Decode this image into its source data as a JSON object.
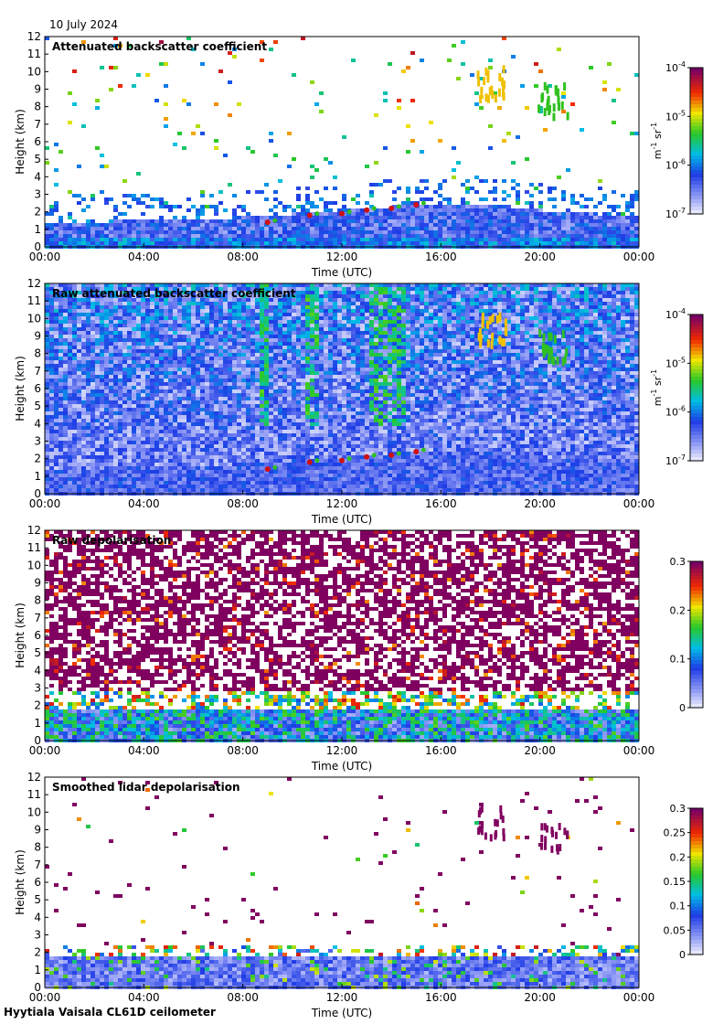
{
  "date": "10 July 2024",
  "footer": "Hyytiala Vaisala CL61D ceilometer",
  "colors": {
    "cloud_red": "#d01010",
    "cirrus_yellow": "#f0c000",
    "cirrus_green": "#30c020",
    "noise_purple": "#800060",
    "boundary_blue": "#4060e0"
  },
  "chart_data": [
    {
      "type": "heatmap",
      "title": "Attenuated backscatter coefficient",
      "xlabel": "Time (UTC)",
      "ylabel": "Height (km)",
      "xticks": [
        "00:00",
        "04:00",
        "08:00",
        "12:00",
        "16:00",
        "20:00",
        "00:00"
      ],
      "yticks": [
        "0",
        "1",
        "2",
        "3",
        "4",
        "5",
        "6",
        "7",
        "8",
        "9",
        "10",
        "11",
        "12"
      ],
      "xlim": [
        0,
        24
      ],
      "ylim": [
        0,
        12
      ],
      "colorbar": {
        "scale": "log",
        "range": [
          1e-07,
          0.0001
        ],
        "ticks": [
          {
            "base": "10",
            "exp": "-7"
          },
          {
            "base": "10",
            "exp": "-6"
          },
          {
            "base": "10",
            "exp": "-5"
          },
          {
            "base": "10",
            "exp": "-4"
          }
        ],
        "label_main": "m",
        "label_sup1": "-1",
        "label_mid": " sr",
        "label_sup2": "-1",
        "colormap": "rainbow-white"
      },
      "features": {
        "boundary_layer_top_km": [
          1.5,
          1.6,
          1.8,
          2.0,
          2.2,
          2.4,
          2.6,
          2.5,
          2.2,
          2.0,
          1.8
        ],
        "boundary_layer_times_h": [
          0,
          4,
          8,
          10,
          12,
          14,
          16,
          18,
          20,
          22,
          24
        ],
        "cloud_points": [
          [
            9.0,
            1.4
          ],
          [
            10.7,
            1.8
          ],
          [
            12.0,
            1.9
          ],
          [
            13.0,
            2.1
          ],
          [
            14.0,
            2.2
          ],
          [
            15.0,
            2.4
          ]
        ],
        "cirrus": [
          {
            "time_h": 18.0,
            "height_km": 9.5
          },
          {
            "time_h": 20.5,
            "height_km": 8.5
          }
        ]
      }
    },
    {
      "type": "heatmap",
      "title": "Raw attenuated backscatter coefficient",
      "xlabel": "Time (UTC)",
      "ylabel": "Height (km)",
      "xticks": [
        "00:00",
        "04:00",
        "08:00",
        "12:00",
        "16:00",
        "20:00",
        "00:00"
      ],
      "yticks": [
        "0",
        "1",
        "2",
        "3",
        "4",
        "5",
        "6",
        "7",
        "8",
        "9",
        "10",
        "11",
        "12"
      ],
      "xlim": [
        0,
        24
      ],
      "ylim": [
        0,
        12
      ],
      "colorbar": {
        "scale": "log",
        "range": [
          1e-07,
          0.0001
        ],
        "ticks": [
          {
            "base": "10",
            "exp": "-7"
          },
          {
            "base": "10",
            "exp": "-6"
          },
          {
            "base": "10",
            "exp": "-5"
          },
          {
            "base": "10",
            "exp": "-4"
          }
        ],
        "label_main": "m",
        "label_sup1": "-1",
        "label_mid": " sr",
        "label_sup2": "-1",
        "colormap": "rainbow-white"
      }
    },
    {
      "type": "heatmap",
      "title": "Raw depolarisation",
      "xlabel": "Time (UTC)",
      "ylabel": "Height (km)",
      "xticks": [
        "00:00",
        "04:00",
        "08:00",
        "12:00",
        "16:00",
        "20:00",
        "00:00"
      ],
      "yticks": [
        "0",
        "1",
        "2",
        "3",
        "4",
        "5",
        "6",
        "7",
        "8",
        "9",
        "10",
        "11",
        "12"
      ],
      "xlim": [
        0,
        24
      ],
      "ylim": [
        0,
        12
      ],
      "colorbar": {
        "scale": "linear",
        "range": [
          0,
          0.3
        ],
        "ticks": [
          "0",
          "0.1",
          "0.2",
          "0.3"
        ],
        "colormap": "rainbow-white"
      }
    },
    {
      "type": "heatmap",
      "title": "Smoothed lidar depolarisation",
      "xlabel": "Time (UTC)",
      "ylabel": "Height (km)",
      "xticks": [
        "00:00",
        "04:00",
        "08:00",
        "12:00",
        "16:00",
        "20:00",
        "00:00"
      ],
      "yticks": [
        "0",
        "1",
        "2",
        "3",
        "4",
        "5",
        "6",
        "7",
        "8",
        "9",
        "10",
        "11",
        "12"
      ],
      "xlim": [
        0,
        24
      ],
      "ylim": [
        0,
        12
      ],
      "colorbar": {
        "scale": "linear",
        "range": [
          0,
          0.3
        ],
        "ticks": [
          "0",
          "0.05",
          "0.1",
          "0.15",
          "0.2",
          "0.25",
          "0.3"
        ],
        "colormap": "rainbow-white"
      }
    }
  ]
}
